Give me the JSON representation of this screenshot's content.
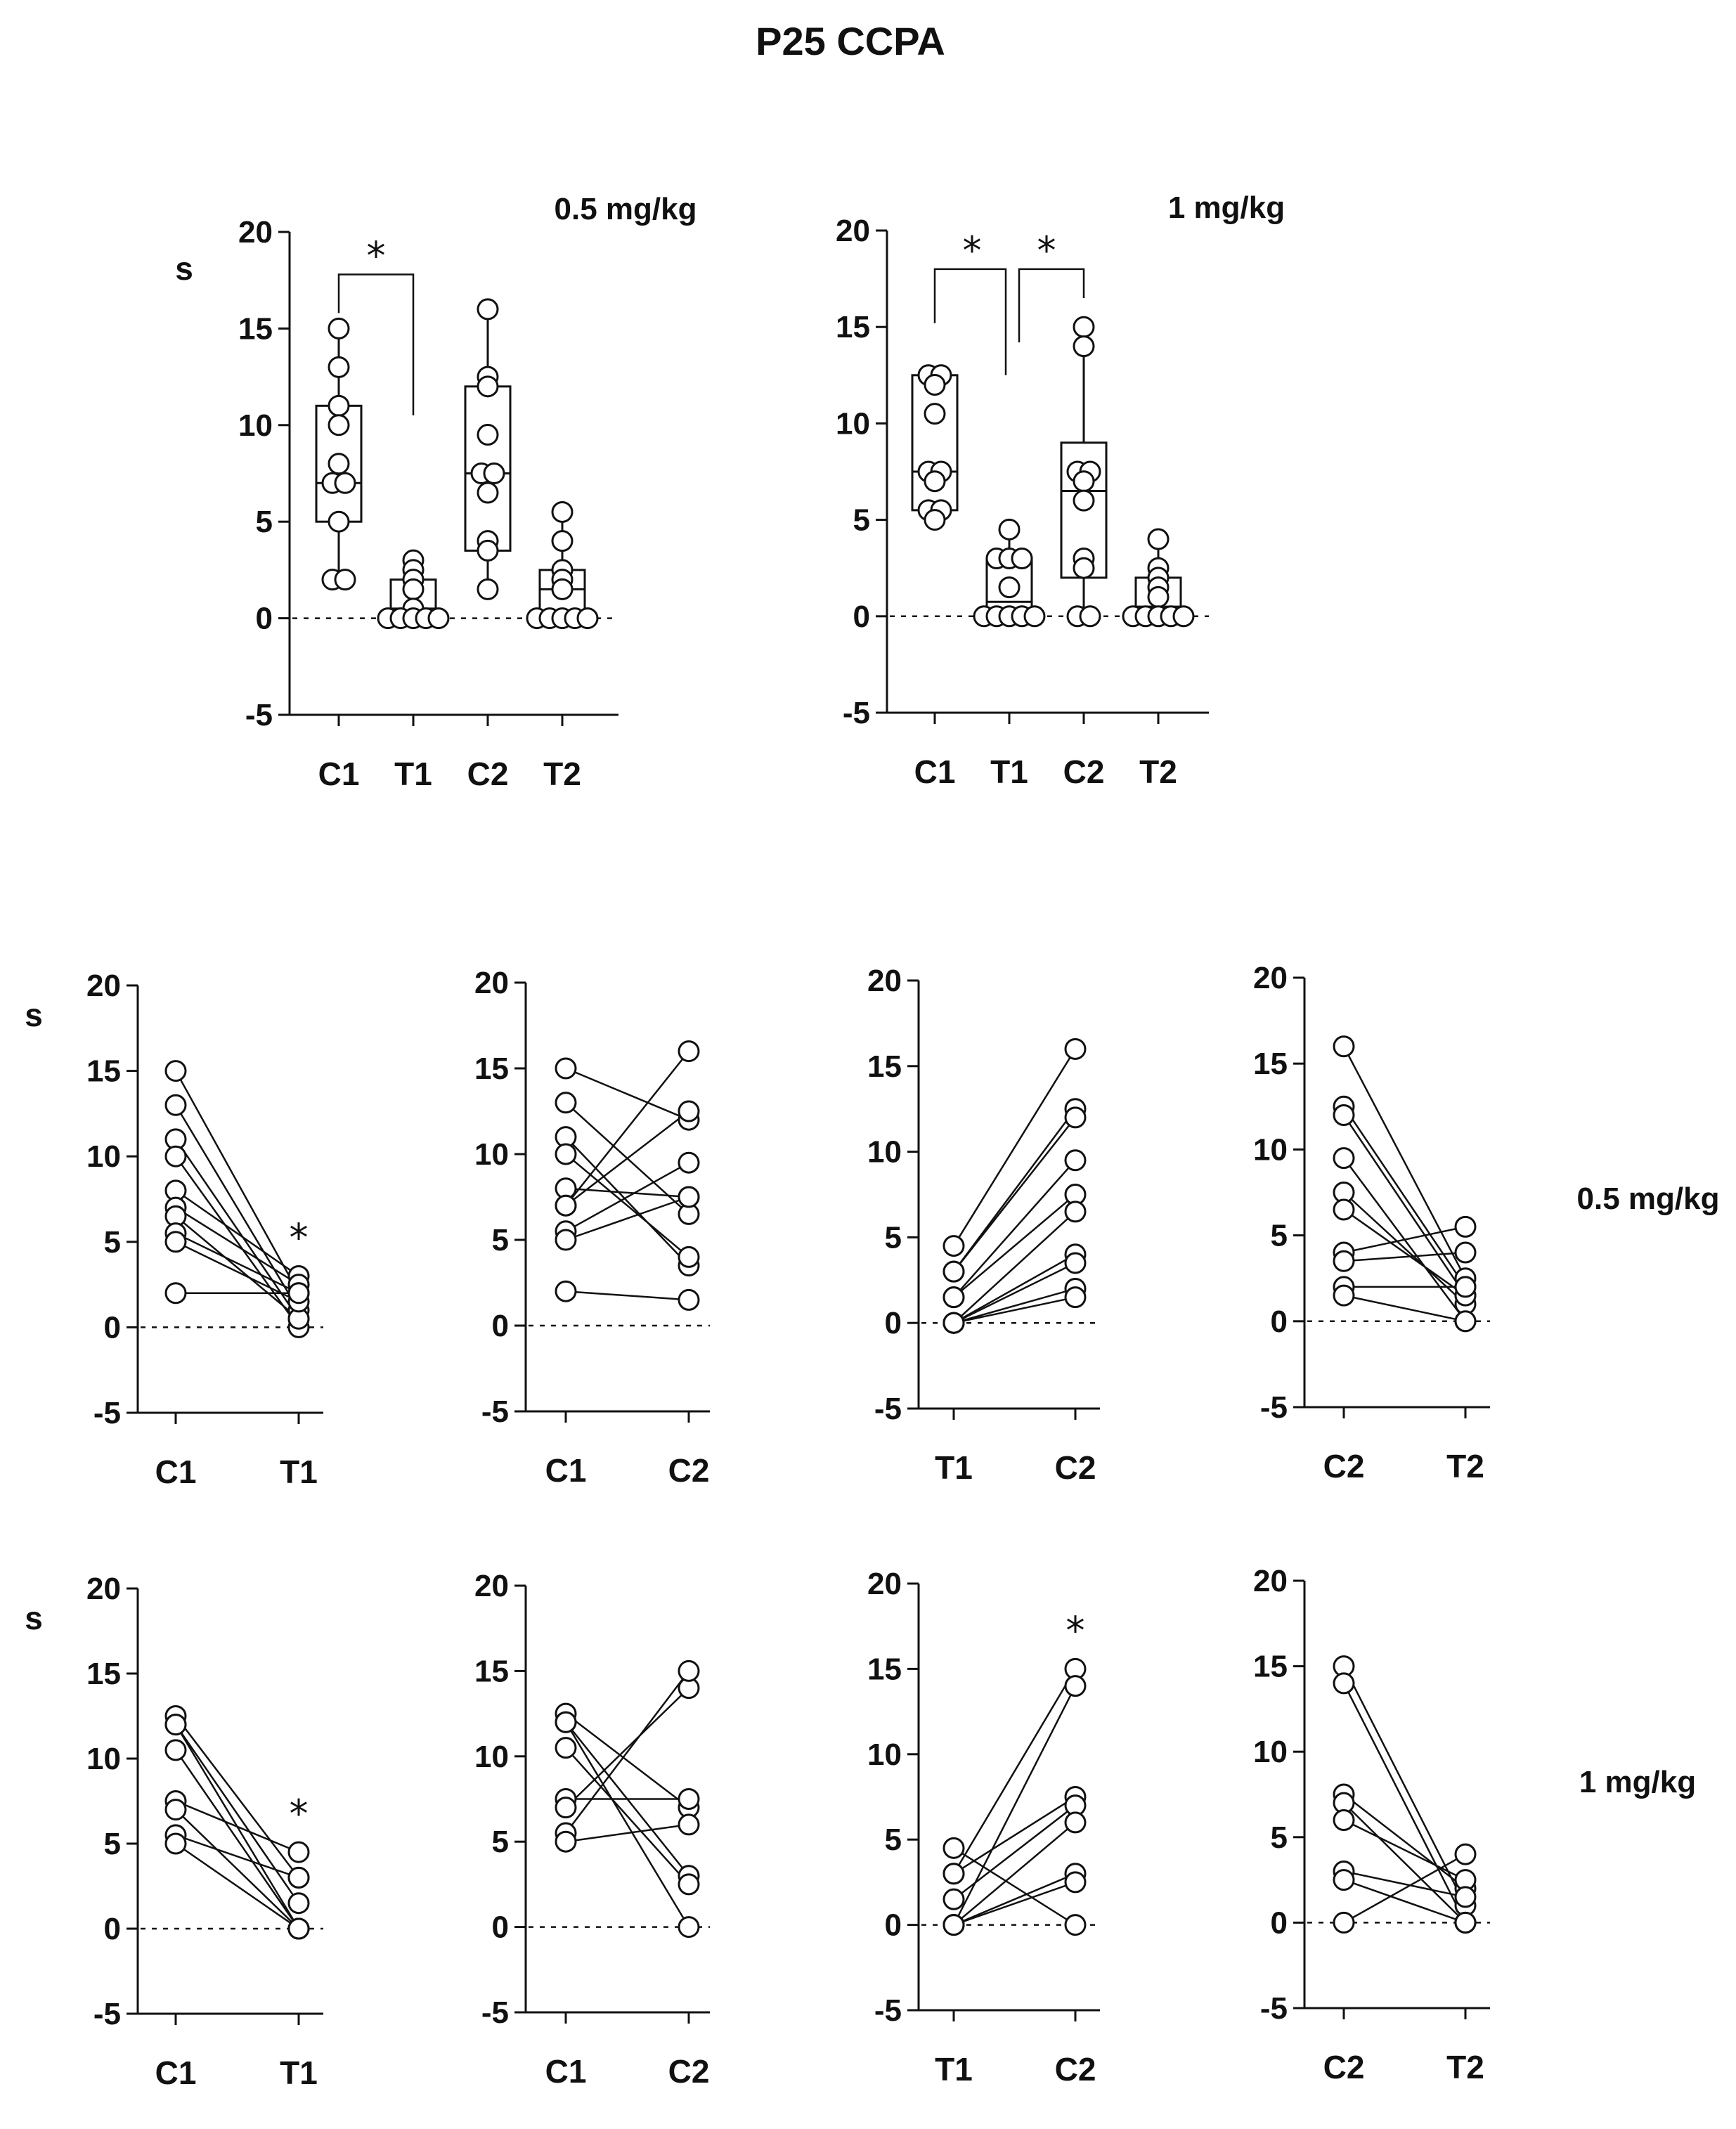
{
  "figure_title": "P25  CCPA",
  "y_axis_label": "s",
  "y_ticks": [
    "20",
    "15",
    "10",
    "5",
    "0",
    "-5"
  ],
  "chart_data": [
    {
      "id": "box-0.5",
      "type": "box",
      "title": "0.5 mg/kg",
      "ylabel": "s",
      "ylim": [
        -5,
        20
      ],
      "reference_line": 0,
      "categories": [
        "C1",
        "T1",
        "C2",
        "T2"
      ],
      "points": [
        [
          15,
          13,
          11,
          10,
          8,
          7,
          7,
          5,
          2,
          2
        ],
        [
          3,
          2.5,
          2,
          1.5,
          0.5,
          0,
          0,
          0,
          0,
          0
        ],
        [
          16,
          12.5,
          12,
          9.5,
          7.5,
          7.5,
          6.5,
          4,
          3.5,
          1.5
        ],
        [
          5.5,
          4,
          2.5,
          2,
          1.5,
          0,
          0,
          0,
          0,
          0
        ]
      ],
      "box": [
        {
          "min": 2,
          "q1": 5,
          "median": 7,
          "q3": 11,
          "max": 15
        },
        {
          "min": 0,
          "q1": 0,
          "median": 0.5,
          "q3": 2,
          "max": 3
        },
        {
          "min": 1.5,
          "q1": 3.5,
          "median": 7.5,
          "q3": 12,
          "max": 16
        },
        {
          "min": 0,
          "q1": 0,
          "median": 1.5,
          "q3": 2.5,
          "max": 5.5
        }
      ],
      "significance": [
        {
          "from": "C1",
          "to": "T1",
          "label": "*"
        }
      ]
    },
    {
      "id": "box-1",
      "type": "box",
      "title": "1 mg/kg",
      "ylabel": "",
      "ylim": [
        -5,
        20
      ],
      "reference_line": 0,
      "categories": [
        "C1",
        "T1",
        "C2",
        "T2"
      ],
      "points": [
        [
          12.5,
          12.5,
          12,
          10.5,
          7.5,
          7.5,
          7,
          5.5,
          5.5,
          5
        ],
        [
          4.5,
          3,
          3,
          3,
          1.5,
          0,
          0,
          0,
          0,
          0
        ],
        [
          15,
          14,
          7.5,
          7.5,
          7,
          6,
          3,
          2.5,
          0,
          0
        ],
        [
          4,
          2.5,
          2,
          1.5,
          1,
          0,
          0,
          0,
          0,
          0
        ]
      ],
      "box": [
        {
          "min": 5,
          "q1": 5.5,
          "median": 7.5,
          "q3": 12.5,
          "max": 12.5
        },
        {
          "min": 0,
          "q1": 0,
          "median": 0.75,
          "q3": 3,
          "max": 4.5
        },
        {
          "min": 0,
          "q1": 2,
          "median": 6.5,
          "q3": 9,
          "max": 15
        },
        {
          "min": 0,
          "q1": 0,
          "median": 0.5,
          "q3": 2,
          "max": 4
        }
      ],
      "significance": [
        {
          "from": "C1",
          "to": "T1",
          "label": "*"
        },
        {
          "from": "T1",
          "to": "C2",
          "label": "*"
        }
      ]
    },
    {
      "id": "pair-0.5-C1T1",
      "type": "paired",
      "row_label": "0.5 mg/kg",
      "ylabel": "s",
      "ylim": [
        -5,
        20
      ],
      "reference_line": 0,
      "categories": [
        "C1",
        "T1"
      ],
      "pairs": [
        [
          15,
          2
        ],
        [
          13,
          1
        ],
        [
          11,
          0.5
        ],
        [
          10,
          0
        ],
        [
          8,
          3
        ],
        [
          7,
          2.5
        ],
        [
          6.5,
          0.5
        ],
        [
          5.5,
          2
        ],
        [
          5,
          1.5
        ],
        [
          2,
          2
        ]
      ],
      "significance": {
        "category": "T1",
        "label": "*"
      }
    },
    {
      "id": "pair-0.5-C1C2",
      "type": "paired",
      "row_label": "0.5 mg/kg",
      "ylabel": "",
      "ylim": [
        -5,
        20
      ],
      "reference_line": 0,
      "categories": [
        "C1",
        "C2"
      ],
      "pairs": [
        [
          15,
          12
        ],
        [
          13,
          6.5
        ],
        [
          11,
          3.5
        ],
        [
          10,
          4
        ],
        [
          8,
          7.5
        ],
        [
          7,
          16
        ],
        [
          7,
          12.5
        ],
        [
          5.5,
          9.5
        ],
        [
          5,
          7.5
        ],
        [
          2,
          1.5
        ]
      ]
    },
    {
      "id": "pair-0.5-T1C2",
      "type": "paired",
      "row_label": "0.5 mg/kg",
      "ylabel": "",
      "ylim": [
        -5,
        20
      ],
      "reference_line": 0,
      "categories": [
        "T1",
        "C2"
      ],
      "pairs": [
        [
          4.5,
          16
        ],
        [
          3,
          12.5
        ],
        [
          3,
          12
        ],
        [
          1.5,
          9.5
        ],
        [
          1.5,
          7.5
        ],
        [
          0,
          6.5
        ],
        [
          0,
          4
        ],
        [
          0,
          3.5
        ],
        [
          0,
          2
        ],
        [
          0,
          1.5
        ]
      ]
    },
    {
      "id": "pair-0.5-C2T2",
      "type": "paired",
      "row_label": "0.5 mg/kg",
      "ylabel": "",
      "ylim": [
        -5,
        20
      ],
      "reference_line": 0,
      "categories": [
        "C2",
        "T2"
      ],
      "pairs": [
        [
          16,
          2.5
        ],
        [
          12.5,
          2
        ],
        [
          12,
          1.5
        ],
        [
          9.5,
          0
        ],
        [
          7.5,
          1
        ],
        [
          6.5,
          1.5
        ],
        [
          4,
          5.5
        ],
        [
          3.5,
          4
        ],
        [
          2,
          2
        ],
        [
          1.5,
          0
        ]
      ]
    },
    {
      "id": "pair-1-C1T1",
      "type": "paired",
      "row_label": "1 mg/kg",
      "ylabel": "s",
      "ylim": [
        -5,
        20
      ],
      "reference_line": 0,
      "categories": [
        "C1",
        "T1"
      ],
      "pairs": [
        [
          12.5,
          3
        ],
        [
          12,
          0
        ],
        [
          12,
          1.5
        ],
        [
          10.5,
          0
        ],
        [
          7.5,
          4.5
        ],
        [
          7,
          0
        ],
        [
          5.5,
          3
        ],
        [
          5,
          0
        ]
      ],
      "significance": {
        "category": "T1",
        "label": "*"
      }
    },
    {
      "id": "pair-1-C1C2",
      "type": "paired",
      "row_label": "1 mg/kg",
      "ylabel": "",
      "ylim": [
        -5,
        20
      ],
      "reference_line": 0,
      "categories": [
        "C1",
        "C2"
      ],
      "pairs": [
        [
          12.5,
          7
        ],
        [
          12,
          3
        ],
        [
          12,
          0
        ],
        [
          10.5,
          2.5
        ],
        [
          7.5,
          7.5
        ],
        [
          7,
          14
        ],
        [
          5.5,
          15
        ],
        [
          5,
          6
        ]
      ]
    },
    {
      "id": "pair-1-T1C2",
      "type": "paired",
      "row_label": "1 mg/kg",
      "ylabel": "",
      "ylim": [
        -5,
        20
      ],
      "reference_line": 0,
      "categories": [
        "T1",
        "C2"
      ],
      "pairs": [
        [
          4.5,
          0
        ],
        [
          3,
          15
        ],
        [
          3,
          7.5
        ],
        [
          1.5,
          7
        ],
        [
          0,
          14
        ],
        [
          0,
          6
        ],
        [
          0,
          3
        ],
        [
          0,
          2.5
        ]
      ],
      "significance": {
        "category": "C2",
        "label": "*"
      }
    },
    {
      "id": "pair-1-C2T2",
      "type": "paired",
      "row_label": "1 mg/kg",
      "ylabel": "",
      "ylim": [
        -5,
        20
      ],
      "reference_line": 0,
      "categories": [
        "C2",
        "T2"
      ],
      "pairs": [
        [
          15,
          1
        ],
        [
          14,
          0
        ],
        [
          7.5,
          2
        ],
        [
          7,
          0
        ],
        [
          6,
          2.5
        ],
        [
          3,
          1.5
        ],
        [
          2.5,
          0
        ],
        [
          0,
          4
        ]
      ]
    }
  ]
}
